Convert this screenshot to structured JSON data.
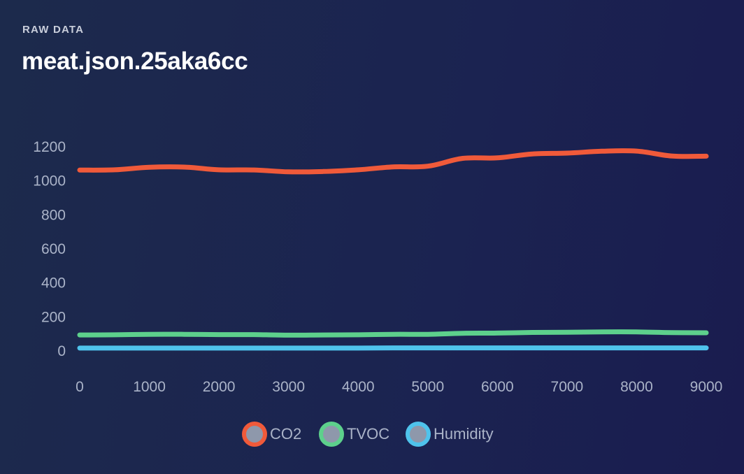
{
  "header": {
    "eyebrow": "RAW DATA",
    "title": "meat.json.25aka6cc"
  },
  "chart_data": {
    "type": "line",
    "xlim": [
      0,
      9000
    ],
    "ylim": [
      0,
      1200
    ],
    "x_ticks": [
      "0",
      "1000",
      "2000",
      "3000",
      "4000",
      "5000",
      "6000",
      "7000",
      "8000",
      "9000"
    ],
    "y_ticks": [
      "0",
      "200",
      "400",
      "600",
      "800",
      "1000",
      "1200"
    ],
    "grid": false,
    "legend_position": "bottom",
    "x": [
      0,
      500,
      1000,
      1500,
      2000,
      2500,
      3000,
      3500,
      4000,
      4500,
      5000,
      5500,
      6000,
      6500,
      7000,
      7500,
      8000,
      8500,
      9000
    ],
    "series": [
      {
        "name": "CO2",
        "color": "#f05a3a",
        "values": [
          1063,
          1065,
          1080,
          1081,
          1065,
          1064,
          1053,
          1055,
          1065,
          1082,
          1086,
          1132,
          1135,
          1158,
          1163,
          1174,
          1175,
          1146,
          1145
        ]
      },
      {
        "name": "TVOC",
        "color": "#5dd08c",
        "values": [
          94,
          95,
          98,
          98,
          96,
          96,
          93,
          94,
          95,
          98,
          98,
          104,
          105,
          109,
          110,
          112,
          112,
          108,
          107
        ]
      },
      {
        "name": "Humidity",
        "color": "#4fc3ec",
        "values": [
          17,
          17,
          17,
          17,
          17,
          17,
          17,
          17,
          17,
          18,
          18,
          18,
          18,
          18,
          18,
          18,
          18,
          18,
          18
        ]
      }
    ]
  }
}
